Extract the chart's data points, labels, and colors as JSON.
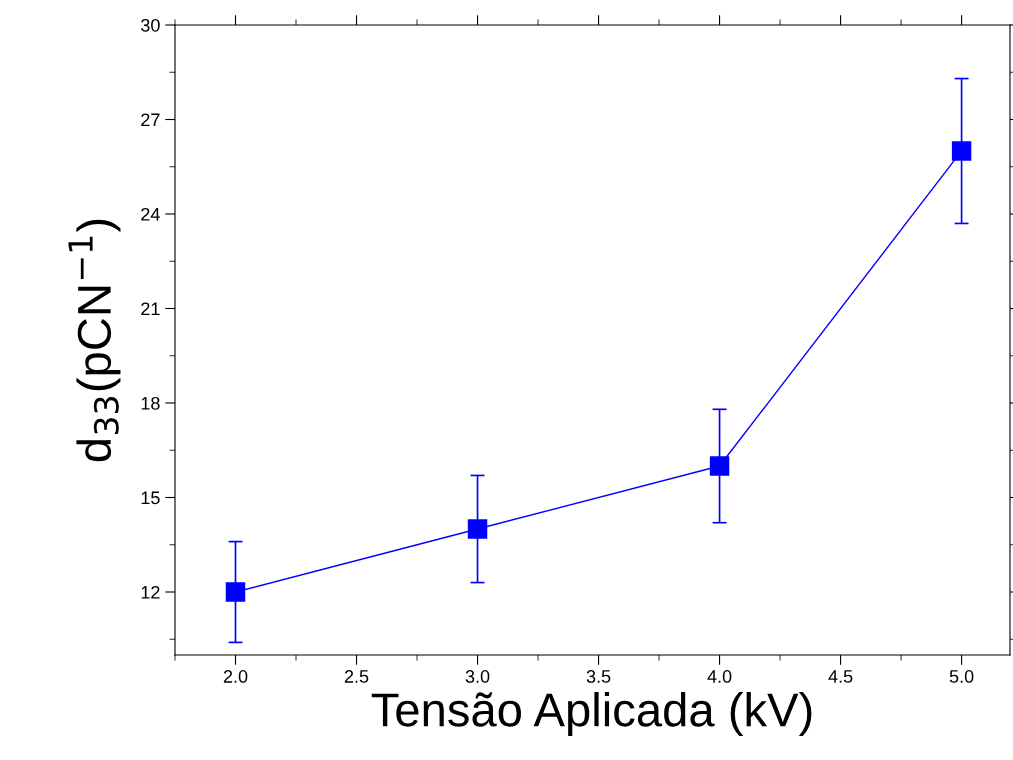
{
  "chart_data": {
    "type": "line",
    "xlabel": "Tensão Aplicada (kV)",
    "ylabel": "d$_{33}$(pCN$^{−1}$)",
    "x": [
      2.0,
      3.0,
      4.0,
      5.0
    ],
    "series": [
      {
        "color": "#0000ff",
        "values": [
          12.0,
          14.0,
          16.0,
          26.0
        ],
        "errors": [
          1.6,
          1.7,
          1.8,
          2.3
        ]
      }
    ],
    "marker": "square",
    "line_style": "solid",
    "grid": false,
    "legend": false,
    "xlim": [
      1.75,
      5.2
    ],
    "xticks": [
      {
        "value": 2.0,
        "label": "2.0"
      },
      {
        "value": 2.5,
        "label": "2.5"
      },
      {
        "value": 3.0,
        "label": "3.0"
      },
      {
        "value": 3.5,
        "label": "3.5"
      },
      {
        "value": 4.0,
        "label": "4.0"
      },
      {
        "value": 4.5,
        "label": "4.5"
      },
      {
        "value": 5.0,
        "label": "5.0"
      }
    ],
    "ylim": [
      10,
      30
    ],
    "yticks": [
      12,
      15,
      18,
      21,
      24,
      27,
      30
    ]
  }
}
